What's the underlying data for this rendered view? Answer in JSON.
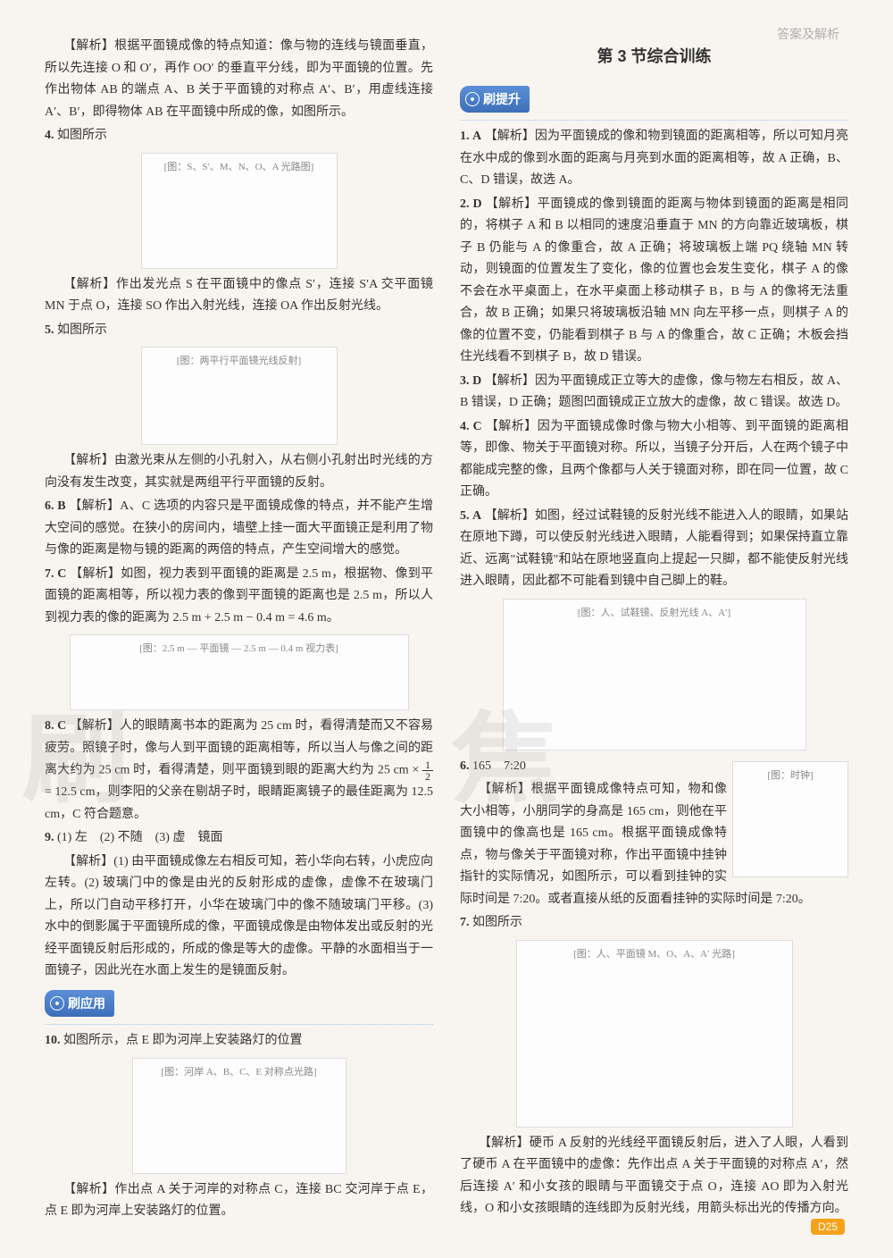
{
  "header": {
    "breadcrumb": "答案及解析"
  },
  "page_number": "D25",
  "watermark": {
    "left": "刷",
    "right": "焦"
  },
  "left": {
    "p1": "【解析】根据平面镜成像的特点知道：像与物的连线与镜面垂直，所以先连接 O 和 O′，再作 OO′ 的垂直平分线，即为平面镜的位置。先作出物体 AB 的端点 A、B 关于平面镜的对称点 A′、B′，用虚线连接 A′、B′，即得物体 AB 在平面镜中所成的像，如图所示。",
    "q4_label": "4.",
    "q4_text": "如图所示",
    "fig1_caption": "[图：S、S′、M、N、O、A 光路图]",
    "q4_ana": "【解析】作出发光点 S 在平面镜中的像点 S′，连接 S′A 交平面镜 MN 于点 O，连接 SO 作出入射光线，连接 OA 作出反射光线。",
    "q5_label": "5.",
    "q5_text": "如图所示",
    "fig2_caption": "[图：两平行平面镜光线反射]",
    "q5_ana": "【解析】由激光束从左侧的小孔射入，从右侧小孔射出时光线的方向没有发生改变，其实就是两组平行平面镜的反射。",
    "q6_label": "6.",
    "q6_ans": "B",
    "q6_ana": "【解析】A、C 选项的内容只是平面镜成像的特点，并不能产生增大空间的感觉。在狭小的房间内，墙壁上挂一面大平面镜正是利用了物与像的距离是物与镜的距离的两倍的特点，产生空间增大的感觉。",
    "q7_label": "7.",
    "q7_ans": "C",
    "q7_ana": "【解析】如图，视力表到平面镜的距离是 2.5 m，根据物、像到平面镜的距离相等，所以视力表的像到平面镜的距离也是 2.5 m，所以人到视力表的像的距离为 2.5 m + 2.5 m − 0.4 m = 4.6 m。",
    "fig3_caption": "[图：2.5 m — 平面镜 — 2.5 m — 0.4 m 视力表]",
    "q8_label": "8.",
    "q8_ans": "C",
    "q8_ana_a": "【解析】人的眼睛离书本的距离为 25 cm 时，看得清楚而又不容易疲劳。照镜子时，像与人到平面镜的距离相等，所以当人与像之间的距离大约为 25 cm 时，看得清楚，则平面镜到眼的距离大约为 25 cm ×",
    "q8_frac_num": "1",
    "q8_frac_den": "2",
    "q8_ana_b": "= 12.5 cm，则李阳的父亲在剔胡子时，眼睛距离镜子的最佳距离为 12.5 cm，C 符合题意。",
    "q9_label": "9.",
    "q9_text": "(1) 左　(2) 不随　(3) 虚　镜面",
    "q9_ana": "【解析】(1) 由平面镜成像左右相反可知，若小华向右转，小虎应向左转。(2) 玻璃门中的像是由光的反射形成的虚像，虚像不在玻璃门上，所以门自动平移打开，小华在玻璃门中的像不随玻璃门平移。(3) 水中的倒影属于平面镜所成的像，平面镜成像是由物体发出或反射的光经平面镜反射后形成的，所成的像是等大的虚像。平静的水面相当于一面镜子，因此光在水面上发生的是镜面反射。",
    "badge_app": "刷应用",
    "q10_label": "10.",
    "q10_text": "如图所示，点 E 即为河岸上安装路灯的位置",
    "fig4_caption": "[图：河岸 A、B、C、E 对称点光路]",
    "q10_ana": "【解析】作出点 A 关于河岸的对称点 C，连接 BC 交河岸于点 E，点 E 即为河岸上安装路灯的位置。"
  },
  "right": {
    "section_title": "第 3 节综合训练",
    "badge_up": "刷提升",
    "q1_label": "1.",
    "q1_ans": "A",
    "q1_ana": "【解析】因为平面镜成的像和物到镜面的距离相等，所以可知月亮在水中成的像到水面的距离与月亮到水面的距离相等，故 A 正确，B、C、D 错误，故选 A。",
    "q2_label": "2.",
    "q2_ans": "D",
    "q2_ana": "【解析】平面镜成的像到镜面的距离与物体到镜面的距离是相同的，将棋子 A 和 B 以相同的速度沿垂直于 MN 的方向靠近玻璃板，棋子 B 仍能与 A 的像重合，故 A 正确；将玻璃板上端 PQ 绕轴 MN 转动，则镜面的位置发生了变化，像的位置也会发生变化，棋子 A 的像不会在水平桌面上，在水平桌面上移动棋子 B，B 与 A 的像将无法重合，故 B 正确；如果只将玻璃板沿轴 MN 向左平移一点，则棋子 A 的像的位置不变，仍能看到棋子 B 与 A 的像重合，故 C 正确；木板会挡住光线看不到棋子 B，故 D 错误。",
    "q3_label": "3.",
    "q3_ans": "D",
    "q3_ana": "【解析】因为平面镜成正立等大的虚像，像与物左右相反，故 A、B 错误，D 正确；题图凹面镜成正立放大的虚像，故 C 错误。故选 D。",
    "q4_label": "4.",
    "q4_ans": "C",
    "q4_ana": "【解析】因为平面镜成像时像与物大小相等、到平面镜的距离相等，即像、物关于平面镜对称。所以，当镜子分开后，人在两个镜子中都能成完整的像，且两个像都与人关于镜面对称，即在同一位置，故 C 正确。",
    "q5_label": "5.",
    "q5_ans": "A",
    "q5_ana": "【解析】如图，经过试鞋镜的反射光线不能进入人的眼睛，如果站在原地下蹲，可以使反射光线进入眼睛，人能看得到；如果保持直立靠近、远离\"试鞋镜\"和站在原地竖直向上提起一只脚，都不能使反射光线进入眼睛，因此都不可能看到镜中自己脚上的鞋。",
    "fig_shoe_caption": "[图：人、试鞋镜、反射光线 A、A′]",
    "q6_label": "6.",
    "q6_text": "165　7:20",
    "q6_ana": "【解析】根据平面镜成像特点可知，物和像大小相等，小朋同学的身高是 165 cm，则他在平面镜中的像高也是 165 cm。根据平面镜成像特点，物与像关于平面镜对称，作出平面镜中挂钟指针的实际情况，如图所示，可以看到挂钟的实际时间是 7:20。或者直接从纸的反面看挂钟的实际时间是 7:20。",
    "fig_clock_caption": "[图：时钟]",
    "q7_label": "7.",
    "q7_text": "如图所示",
    "fig_person_caption": "[图：人、平面镜 M、O、A、A′ 光路]",
    "q7_ana": "【解析】硬币 A 反射的光线经平面镜反射后，进入了人眼，人看到了硬币 A 在平面镜中的虚像：先作出点 A 关于平面镜的对称点 A′，然后连接 A′ 和小女孩的眼睛与平面镜交于点 O，连接 AO 即为入射光线，O 和小女孩眼睛的连线即为反射光线，用箭头标出光的传播方向。"
  }
}
